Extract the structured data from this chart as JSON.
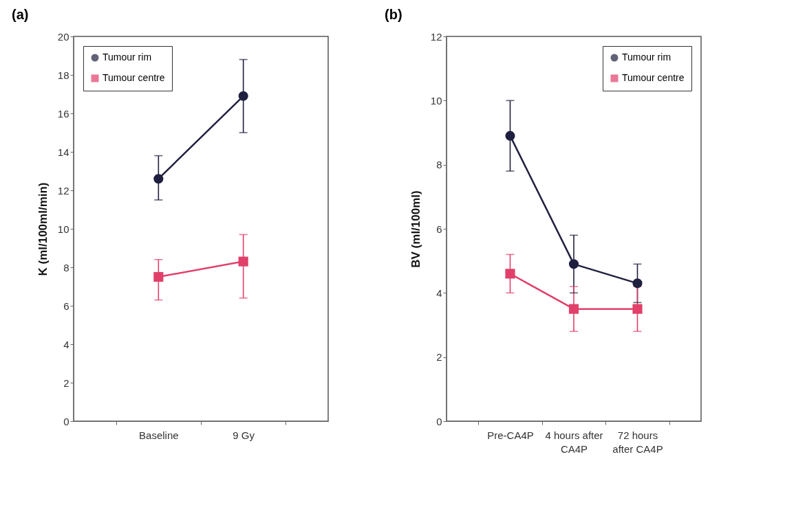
{
  "chart_data": [
    {
      "type": "line",
      "title": "(a)",
      "ylabel": "K (ml/100ml/min)",
      "categories": [
        "Baseline",
        "9 Gy"
      ],
      "ylim": [
        0,
        20
      ],
      "yticks": [
        0,
        2,
        4,
        6,
        8,
        10,
        12,
        14,
        16,
        18,
        20
      ],
      "grid": false,
      "legend": "top left",
      "series": [
        {
          "name": "Tumour rim",
          "color": "#1f1f3f",
          "marker": "circle",
          "values": [
            12.6,
            16.9
          ],
          "errors": [
            [
              11.5,
              13.8
            ],
            [
              15.0,
              18.8
            ]
          ]
        },
        {
          "name": "Tumour centre",
          "color": "#e0406a",
          "marker": "square",
          "values": [
            7.5,
            8.3
          ],
          "errors": [
            [
              6.3,
              8.4
            ],
            [
              6.4,
              9.7
            ]
          ]
        }
      ]
    },
    {
      "type": "line",
      "title": "(b)",
      "ylabel": "BV (ml/100ml)",
      "categories": [
        "Pre-CA4P",
        "4 hours after CA4P",
        "72 hours after CA4P"
      ],
      "ylim": [
        0,
        12
      ],
      "yticks": [
        0,
        2,
        4,
        6,
        8,
        10,
        12
      ],
      "grid": false,
      "legend": "top right",
      "series": [
        {
          "name": "Tumour rim",
          "color": "#1f1f3f",
          "marker": "circle",
          "values": [
            8.9,
            4.9,
            4.3
          ],
          "errors": [
            [
              7.8,
              10.0
            ],
            [
              4.0,
              5.8
            ],
            [
              3.7,
              4.9
            ]
          ]
        },
        {
          "name": "Tumour centre",
          "color": "#e0406a",
          "marker": "square",
          "values": [
            4.6,
            3.5,
            3.5
          ],
          "errors": [
            [
              4.0,
              5.2
            ],
            [
              2.8,
              4.2
            ],
            [
              2.8,
              4.2
            ]
          ]
        }
      ]
    }
  ]
}
